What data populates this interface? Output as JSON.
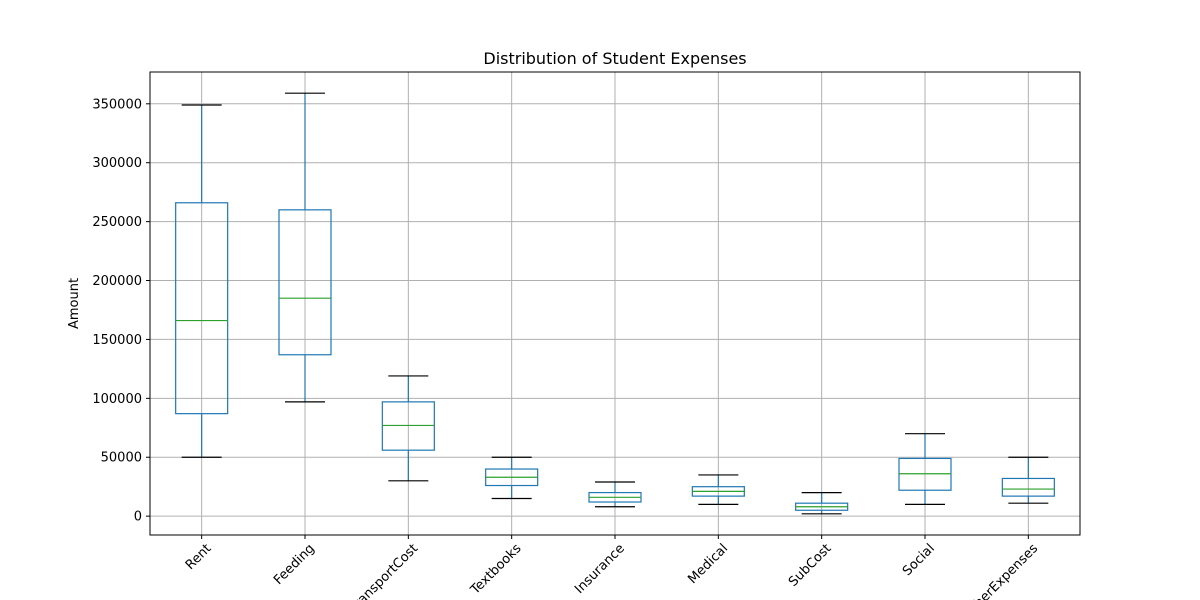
{
  "chart_data": {
    "type": "box",
    "title": "Distribution of Student Expenses",
    "xlabel": "",
    "ylabel": "Amount",
    "ylim": [
      -16000,
      377000
    ],
    "yticks": [
      0,
      50000,
      100000,
      150000,
      200000,
      250000,
      300000,
      350000
    ],
    "grid": true,
    "categories": [
      "Rent",
      "Feeding",
      "TransportCost",
      "Textbooks",
      "Insurance",
      "Medical",
      "SubCost",
      "Social",
      "OtherExpenses"
    ],
    "boxes": [
      {
        "whisker_low": 50000,
        "q1": 87000,
        "median": 166000,
        "q3": 266000,
        "whisker_high": 349000
      },
      {
        "whisker_low": 97000,
        "q1": 137000,
        "median": 185000,
        "q3": 260000,
        "whisker_high": 359000
      },
      {
        "whisker_low": 30000,
        "q1": 56000,
        "median": 77000,
        "q3": 97000,
        "whisker_high": 119000
      },
      {
        "whisker_low": 15000,
        "q1": 26000,
        "median": 33000,
        "q3": 40000,
        "whisker_high": 50000
      },
      {
        "whisker_low": 8000,
        "q1": 12000,
        "median": 16000,
        "q3": 20000,
        "whisker_high": 29000
      },
      {
        "whisker_low": 10000,
        "q1": 17000,
        "median": 21000,
        "q3": 25000,
        "whisker_high": 35000
      },
      {
        "whisker_low": 2000,
        "q1": 5000,
        "median": 8000,
        "q3": 11000,
        "whisker_high": 20000
      },
      {
        "whisker_low": 10000,
        "q1": 22000,
        "median": 36000,
        "q3": 49000,
        "whisker_high": 70000
      },
      {
        "whisker_low": 11000,
        "q1": 17000,
        "median": 23000,
        "q3": 32000,
        "whisker_high": 50000
      }
    ],
    "colors": {
      "box": "#1f77b4",
      "median": "#2ca02c",
      "cap": "#000000",
      "grid": "#b0b0b0",
      "axes": "#000000"
    }
  }
}
